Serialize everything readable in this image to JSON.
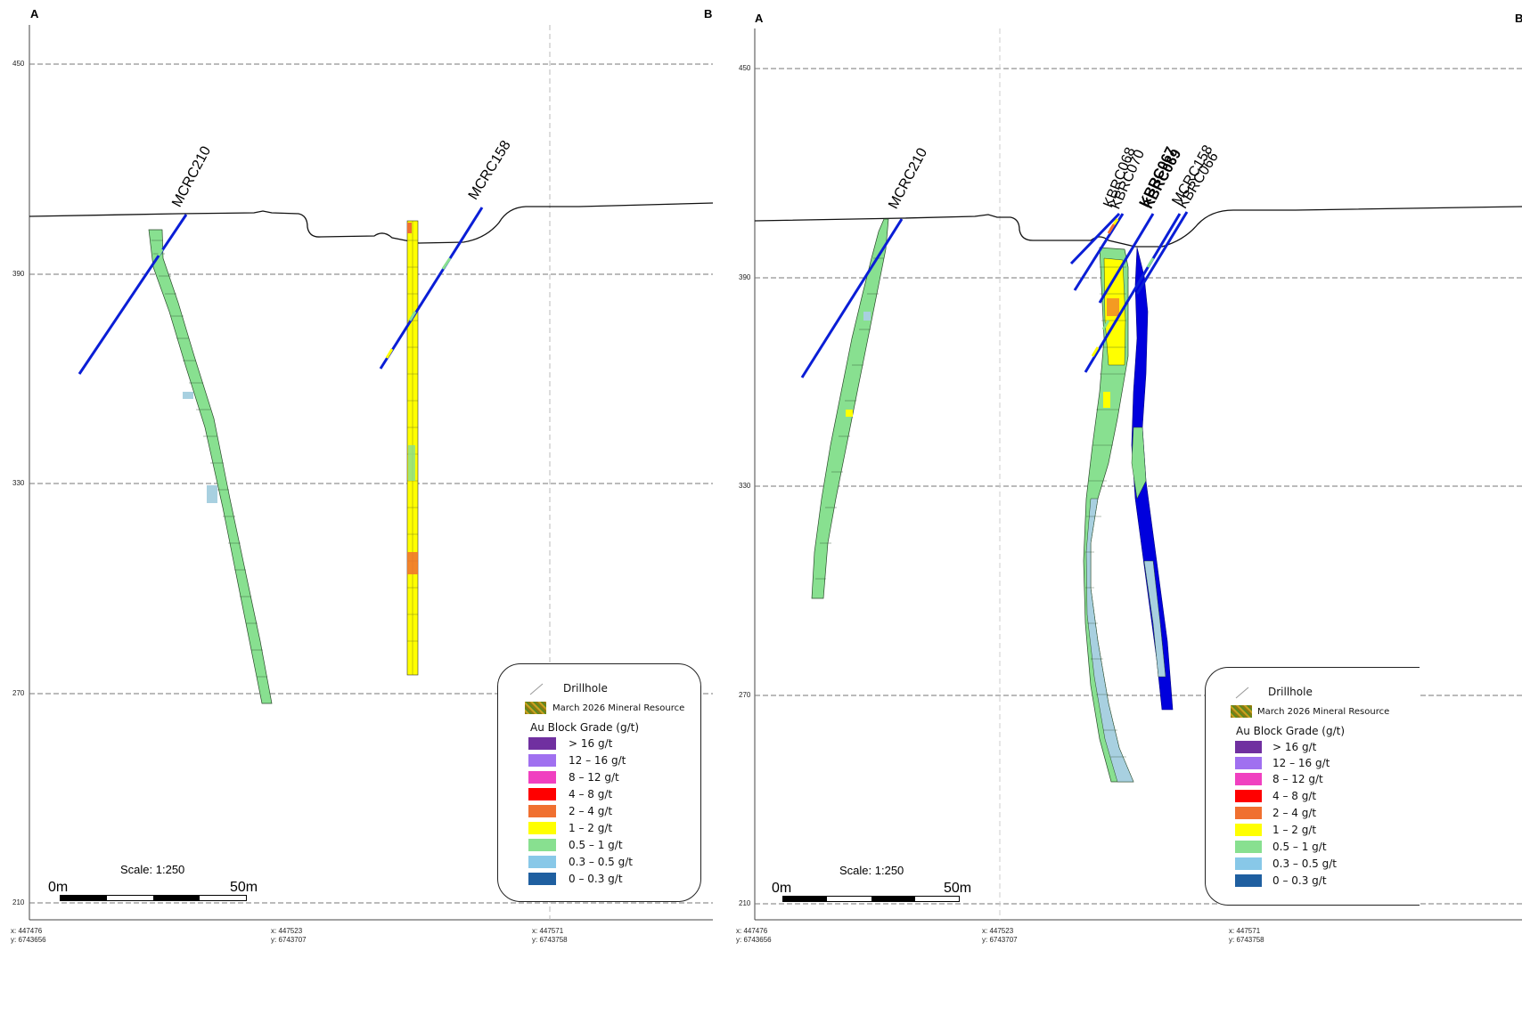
{
  "panels": [
    {
      "corner_left": "A",
      "corner_right": "B",
      "elevations": [
        "450",
        "390",
        "330",
        "270",
        "210"
      ],
      "coords": [
        {
          "x": "x: 447476",
          "y": "y: 6743656"
        },
        {
          "x": "x: 447523",
          "y": "y: 6743707"
        },
        {
          "x": "x: 447571",
          "y": "y: 6743758"
        }
      ],
      "hole_labels": [
        "MCRC210",
        "MCRC158"
      ],
      "scale": {
        "label": "Scale: 1:250",
        "start": "0m",
        "end": "50m"
      }
    },
    {
      "corner_left": "A",
      "corner_right": "B",
      "elevations": [
        "450",
        "390",
        "330",
        "270",
        "210"
      ],
      "coords": [
        {
          "x": "x: 447476",
          "y": "y: 6743656"
        },
        {
          "x": "x: 447523",
          "y": "y: 6743707"
        },
        {
          "x": "x: 447571",
          "y": "y: 6743758"
        }
      ],
      "hole_labels": [
        "MCRC210",
        "KBRC068",
        "KBRC070",
        "KBRC067",
        "KBRC069",
        "MCRC158",
        "KBRC066"
      ],
      "scale": {
        "label": "Scale: 1:250",
        "start": "0m",
        "end": "50m"
      }
    }
  ],
  "legend": {
    "drillhole": "Drillhole",
    "resource": "March 2026 Mineral Resource",
    "title": "Au Block Grade (g/t)",
    "items": [
      {
        "label": "> 16 g/t",
        "color": "#7030a0"
      },
      {
        "label": "12 – 16 g/t",
        "color": "#a070f0"
      },
      {
        "label": "8 – 12 g/t",
        "color": "#f040c0"
      },
      {
        "label": "4 – 8 g/t",
        "color": "#ff0000"
      },
      {
        "label": "2 – 4 g/t",
        "color": "#f07030"
      },
      {
        "label": "1 – 2 g/t",
        "color": "#ffff00"
      },
      {
        "label": "0.5 – 1 g/t",
        "color": "#88e090"
      },
      {
        "label": "0.3 – 0.5 g/t",
        "color": "#88c8e8"
      },
      {
        "label": "0 – 0.3 g/t",
        "color": "#1f5fa0"
      }
    ]
  },
  "colors": {
    "drill": "#0a1ed6",
    "green": "#88e090",
    "blue_light": "#a8d0e0",
    "yellow": "#ffff00",
    "orange": "#f07030",
    "dark_blue": "#0000dd"
  }
}
